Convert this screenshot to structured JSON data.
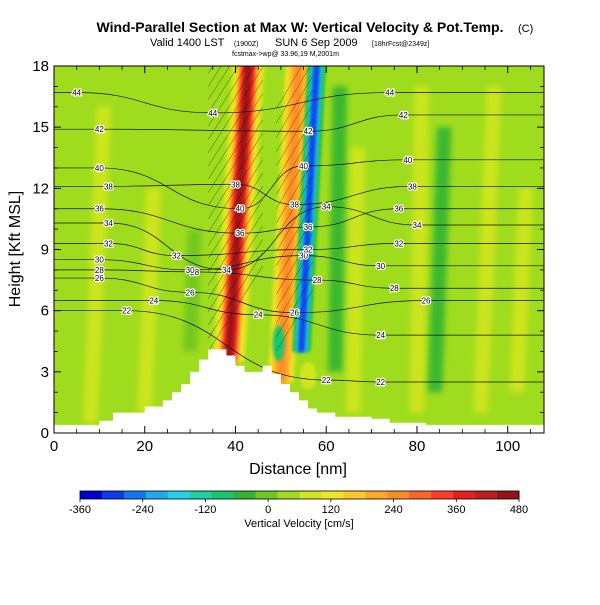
{
  "header": {
    "title": "Wind-Parallel Section at Max W: Vertical Velocity & Pot.Temp.",
    "title_mark": "(C)",
    "valid_line": "Valid 1400 LST",
    "valid_zulu": "(1900Z)",
    "valid_date": "SUN 6 Sep 2009",
    "forecast_tag": "[18hrFcst@2349z]",
    "small_line": "fcstmax->wp@ 33.96,19 M,2001m"
  },
  "chart_data": {
    "type": "heatmap",
    "title": "Wind-Parallel Section at Max W: Vertical Velocity & Pot.Temp.",
    "xlabel": "Distance [nm]",
    "ylabel": "Height [Kft MSL]",
    "xlim": [
      0,
      108
    ],
    "ylim": [
      0,
      18
    ],
    "x_ticks": [
      0,
      20,
      40,
      60,
      80,
      100
    ],
    "y_ticks": [
      0,
      3,
      6,
      9,
      12,
      15,
      18
    ],
    "colorbar": {
      "label": "Vertical Velocity [cm/s]",
      "ticks": [
        -360,
        -240,
        -120,
        0,
        120,
        240,
        360,
        480
      ],
      "range": [
        -360,
        480
      ],
      "colors": [
        "#0000d0",
        "#0a3ce8",
        "#1478f0",
        "#1eaaf0",
        "#22d2e6",
        "#1ed2a0",
        "#16c76e",
        "#32b432",
        "#6ec81e",
        "#a0dc1e",
        "#d2e61e",
        "#f0e628",
        "#ffc828",
        "#ffaa28",
        "#ff8c28",
        "#ff6428",
        "#ff3c28",
        "#e61e1e",
        "#be1e1e",
        "#961414"
      ]
    },
    "updraft_axis_x_nm": [
      36.5,
      40,
      43
    ],
    "updraft_w_max": 480,
    "second_updraft_axis_x_nm": [
      51,
      54
    ],
    "downdraft_axis_x_nm": [
      55.5,
      58
    ],
    "downdraft_w_min": -300,
    "terrain_nm_kft": [
      [
        0,
        0.4
      ],
      [
        6,
        0.4
      ],
      [
        10,
        0.6
      ],
      [
        13,
        1.0
      ],
      [
        18,
        1.0
      ],
      [
        20,
        1.3
      ],
      [
        22,
        1.3
      ],
      [
        24,
        1.6
      ],
      [
        26,
        2.0
      ],
      [
        28,
        2.4
      ],
      [
        30,
        3.0
      ],
      [
        32,
        3.6
      ],
      [
        34,
        4.1
      ],
      [
        36,
        4.1
      ],
      [
        38,
        3.8
      ],
      [
        40,
        3.3
      ],
      [
        42,
        3.0
      ],
      [
        44,
        3.0
      ],
      [
        46,
        3.3
      ],
      [
        48,
        2.9
      ],
      [
        50,
        2.4
      ],
      [
        52,
        2.0
      ],
      [
        54,
        1.6
      ],
      [
        56,
        1.2
      ],
      [
        58,
        1.0
      ],
      [
        62,
        0.8
      ],
      [
        66,
        0.8
      ],
      [
        70,
        0.7
      ],
      [
        74,
        0.5
      ],
      [
        82,
        0.4
      ],
      [
        108,
        0.4
      ]
    ],
    "theta_levels": [
      22,
      24,
      26,
      28,
      30,
      32,
      34,
      36,
      38,
      40,
      42,
      44
    ],
    "theta_contours": [
      {
        "value": 22,
        "label_points": [
          [
            16,
            6.0
          ],
          [
            60,
            2.6
          ],
          [
            72,
            2.5
          ]
        ]
      },
      {
        "value": 24,
        "label_points": [
          [
            22,
            6.5
          ],
          [
            45,
            5.8
          ],
          [
            72,
            4.8
          ]
        ]
      },
      {
        "value": 26,
        "label_points": [
          [
            10,
            7.6
          ],
          [
            30,
            6.9
          ],
          [
            53,
            5.9
          ],
          [
            82,
            6.5
          ]
        ]
      },
      {
        "value": 28,
        "label_points": [
          [
            10,
            8.0
          ],
          [
            31,
            7.9
          ],
          [
            58,
            7.5
          ],
          [
            75,
            7.1
          ]
        ]
      },
      {
        "value": 30,
        "label_points": [
          [
            10,
            8.5
          ],
          [
            30,
            8.0
          ],
          [
            55,
            8.7
          ],
          [
            72,
            8.2
          ]
        ]
      },
      {
        "value": 32,
        "label_points": [
          [
            12,
            9.3
          ],
          [
            27,
            8.7
          ],
          [
            56,
            9.0
          ],
          [
            76,
            9.3
          ]
        ]
      },
      {
        "value": 34,
        "label_points": [
          [
            12,
            10.3
          ],
          [
            38,
            8.0
          ],
          [
            60,
            11.1
          ],
          [
            80,
            10.2
          ]
        ]
      },
      {
        "value": 36,
        "label_points": [
          [
            10,
            11.0
          ],
          [
            41,
            9.8
          ],
          [
            56,
            10.1
          ],
          [
            76,
            11.0
          ]
        ]
      },
      {
        "value": 38,
        "label_points": [
          [
            12,
            12.1
          ],
          [
            40,
            12.2
          ],
          [
            53,
            11.2
          ],
          [
            79,
            12.1
          ]
        ]
      },
      {
        "value": 40,
        "label_points": [
          [
            10,
            13.0
          ],
          [
            41,
            11.0
          ],
          [
            55,
            13.1
          ],
          [
            78,
            13.4
          ]
        ]
      },
      {
        "value": 42,
        "label_points": [
          [
            10,
            14.9
          ],
          [
            56,
            14.8
          ],
          [
            77,
            15.6
          ]
        ]
      },
      {
        "value": 44,
        "label_points": [
          [
            5,
            16.7
          ],
          [
            35,
            15.7
          ],
          [
            74,
            16.7
          ]
        ]
      }
    ]
  }
}
